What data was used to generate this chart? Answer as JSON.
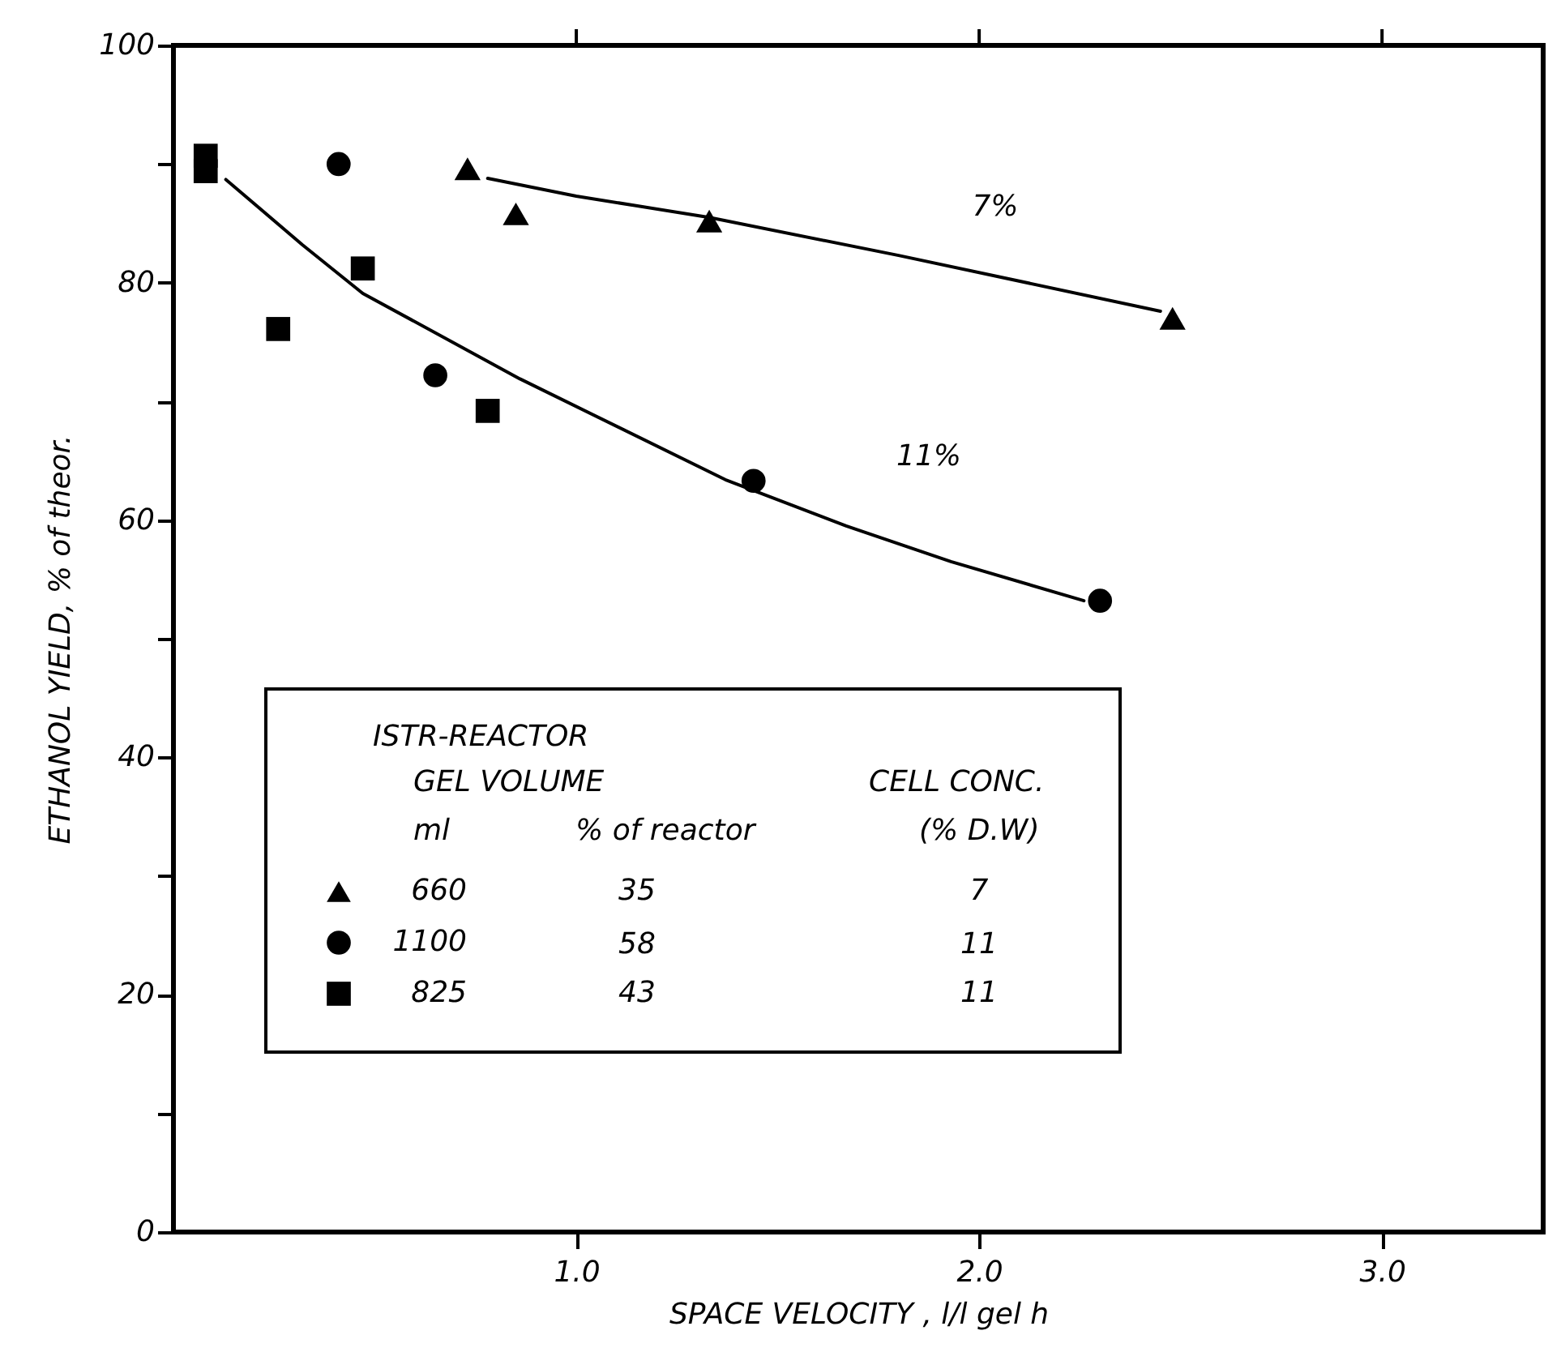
{
  "chart_data": {
    "type": "scatter",
    "xlabel": "SPACE VELOCITY , l/l gel h",
    "ylabel": "ETHANOL YIELD, % of theor.",
    "xlim": [
      0,
      3.4
    ],
    "xticks": [
      {
        "value": 1,
        "label": "1.0"
      },
      {
        "value": 2,
        "label": "2.0"
      },
      {
        "value": 3,
        "label": "3.0"
      }
    ],
    "ylim": [
      0,
      100
    ],
    "yticks": [
      0,
      {
        "value": 10,
        "label": null
      },
      20,
      {
        "value": 30,
        "label": null
      },
      40,
      {
        "value": 50,
        "label": null
      },
      60,
      {
        "value": 70,
        "label": null
      },
      80,
      {
        "value": 90,
        "label": null
      },
      100
    ],
    "tick_labels": "xy",
    "grid": false,
    "legend": "bottom left",
    "legend_title": "ISTR-REACTOR",
    "series": [
      {
        "name": "660",
        "marker": "triangle",
        "color": "#000000",
        "x": [
          0.73,
          0.85,
          1.33,
          2.48
        ],
        "values": [
          89.6,
          85.8,
          85.2,
          77.0
        ]
      },
      {
        "name": "1100",
        "marker": "circle",
        "color": "#000000",
        "x": [
          0.41,
          0.65,
          1.44,
          2.3
        ],
        "values": [
          90.0,
          72.2,
          63.3,
          53.2
        ]
      },
      {
        "name": "825",
        "marker": "square",
        "color": "#000000",
        "x": [
          0.08,
          0.08,
          0.26,
          0.47,
          0.78
        ],
        "values": [
          89.4,
          90.7,
          76.1,
          81.2,
          69.2
        ]
      },
      {
        "type": "line",
        "marker": "none",
        "color": "#000000",
        "x": [
          0.78,
          1.0,
          1.33,
          1.8,
          2.45
        ],
        "values": [
          88.8,
          87.3,
          85.5,
          82.3,
          77.6
        ]
      },
      {
        "type": "line",
        "marker": "none",
        "color": "#000000",
        "x": [
          0.13,
          0.32,
          0.47,
          0.86,
          1.37,
          1.67,
          1.93,
          2.26
        ],
        "values": [
          88.7,
          83.2,
          79.1,
          71.9,
          63.4,
          59.5,
          56.5,
          53.2
        ]
      }
    ],
    "annotations": [
      "GEL VOLUME",
      "CELL CONC.",
      "ml",
      "% of reactor",
      "(% D.W)",
      "35",
      "58",
      "43",
      "7",
      "11",
      "11",
      "7%",
      "11%"
    ]
  }
}
